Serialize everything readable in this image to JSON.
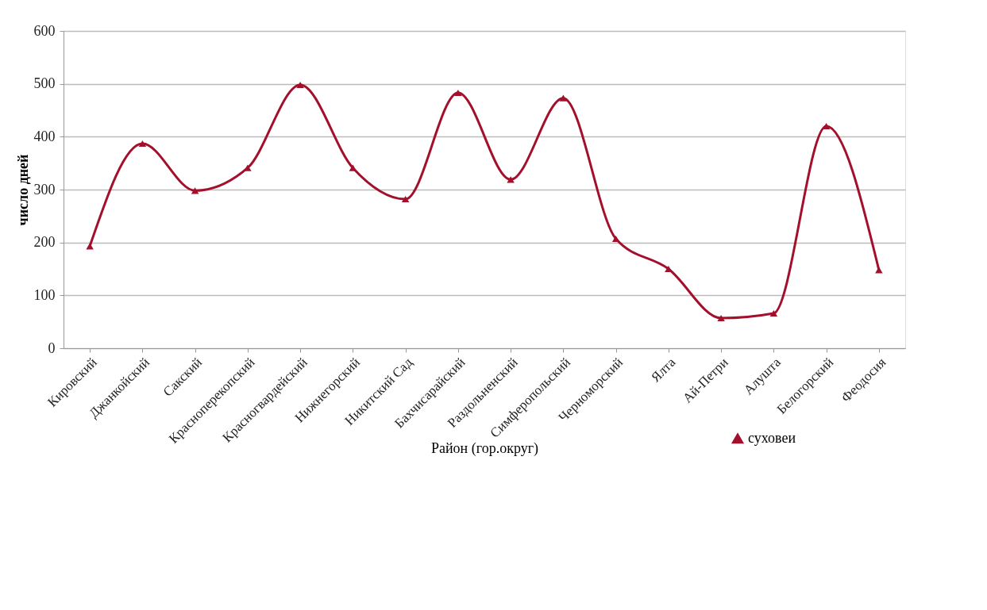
{
  "chart_data": {
    "type": "line",
    "xlabel": "Район (гор.округ)",
    "ylabel": "число дней",
    "categories": [
      "Кировский",
      "Джанкойский",
      "Сакский",
      "Красноперекопский",
      "Красногвардейский",
      "Нижнегорский",
      "Никитский Сад",
      "Бахчисарайский",
      "Раздольненский",
      "Симферопольский",
      "Черноморский",
      "Ялта",
      "Ай-Петри",
      "Алушта",
      "Белогорский",
      "Феодосия"
    ],
    "series": [
      {
        "name": "суховеи",
        "color": "#a3102c",
        "values": [
          193,
          387,
          298,
          341,
          498,
          341,
          282,
          483,
          319,
          473,
          207,
          150,
          57,
          66,
          420,
          148
        ]
      }
    ],
    "ylim": [
      0,
      600
    ],
    "yticks": [
      0,
      100,
      200,
      300,
      400,
      500,
      600
    ],
    "grid": "y",
    "legend": "bottom",
    "marker": "triangle",
    "line_style": "solid"
  }
}
